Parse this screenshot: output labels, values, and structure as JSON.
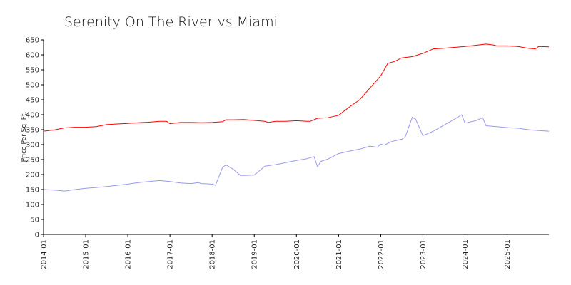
{
  "chart_data": {
    "type": "line",
    "title": "Serenity On The River vs Miami",
    "xlabel": "",
    "ylabel": "Price Per Sq. Ft.",
    "ylim": [
      0,
      650
    ],
    "xlim": [
      2014.0,
      2025.99
    ],
    "grid": false,
    "yticks": [
      0,
      50,
      100,
      150,
      200,
      250,
      300,
      350,
      400,
      450,
      500,
      550,
      600,
      650
    ],
    "xticks": [
      {
        "label": "2014-01",
        "value": 2014.0
      },
      {
        "label": "2015-01",
        "value": 2015.0
      },
      {
        "label": "2016-01",
        "value": 2016.0
      },
      {
        "label": "2017-01",
        "value": 2017.0
      },
      {
        "label": "2018-01",
        "value": 2018.0
      },
      {
        "label": "2019-01",
        "value": 2019.0
      },
      {
        "label": "2020-01",
        "value": 2020.0
      },
      {
        "label": "2021-01",
        "value": 2021.0
      },
      {
        "label": "2022-01",
        "value": 2022.0
      },
      {
        "label": "2023-01",
        "value": 2023.0
      },
      {
        "label": "2024-01",
        "value": 2024.0
      },
      {
        "label": "2025-01",
        "value": 2025.0
      }
    ],
    "series": [
      {
        "name": "Miami",
        "color": "#ff0000",
        "x": [
          2014.0,
          2014.25,
          2014.5,
          2014.75,
          2015.0,
          2015.25,
          2015.5,
          2015.75,
          2016.0,
          2016.25,
          2016.5,
          2016.75,
          2016.92,
          2017.0,
          2017.25,
          2017.5,
          2017.75,
          2018.0,
          2018.25,
          2018.33,
          2018.5,
          2018.75,
          2019.0,
          2019.25,
          2019.33,
          2019.5,
          2019.75,
          2020.0,
          2020.25,
          2020.33,
          2020.5,
          2020.75,
          2021.0,
          2021.25,
          2021.5,
          2021.75,
          2022.0,
          2022.17,
          2022.33,
          2022.5,
          2022.75,
          2023.0,
          2023.25,
          2023.5,
          2023.75,
          2024.0,
          2024.25,
          2024.5,
          2024.67,
          2024.75,
          2025.0,
          2025.25,
          2025.5,
          2025.67,
          2025.75,
          2025.99
        ],
        "values": [
          345,
          349,
          356,
          358,
          358,
          360,
          367,
          369,
          371,
          373,
          375,
          378,
          378,
          370,
          374,
          374,
          373,
          374,
          377,
          383,
          383,
          384,
          381,
          378,
          374,
          378,
          378,
          380,
          378,
          378,
          388,
          390,
          398,
          425,
          450,
          490,
          530,
          572,
          578,
          590,
          594,
          605,
          620,
          622,
          625,
          628,
          632,
          636,
          633,
          630,
          630,
          628,
          622,
          620,
          628,
          627
        ]
      },
      {
        "name": "Serenity On The River",
        "color": "#9999ee",
        "x": [
          2014.0,
          2014.25,
          2014.5,
          2014.75,
          2015.0,
          2015.25,
          2015.5,
          2015.75,
          2016.0,
          2016.25,
          2016.5,
          2016.75,
          2017.0,
          2017.25,
          2017.5,
          2017.67,
          2017.75,
          2018.0,
          2018.08,
          2018.25,
          2018.33,
          2018.5,
          2018.67,
          2018.75,
          2019.0,
          2019.17,
          2019.25,
          2019.5,
          2019.75,
          2020.0,
          2020.25,
          2020.42,
          2020.5,
          2020.58,
          2020.75,
          2021.0,
          2021.25,
          2021.5,
          2021.75,
          2021.92,
          2022.0,
          2022.08,
          2022.25,
          2022.5,
          2022.58,
          2022.75,
          2022.83,
          2023.0,
          2023.25,
          2023.5,
          2023.75,
          2023.92,
          2024.0,
          2024.25,
          2024.42,
          2024.5,
          2024.75,
          2025.0,
          2025.25,
          2025.5,
          2025.75,
          2025.99
        ],
        "values": [
          150,
          148,
          145,
          150,
          154,
          157,
          160,
          164,
          168,
          173,
          177,
          180,
          177,
          172,
          170,
          173,
          170,
          168,
          164,
          225,
          232,
          218,
          197,
          197,
          198,
          218,
          228,
          233,
          240,
          247,
          253,
          260,
          226,
          244,
          252,
          270,
          278,
          285,
          295,
          291,
          302,
          298,
          310,
          318,
          325,
          392,
          385,
          330,
          345,
          365,
          385,
          400,
          372,
          380,
          390,
          363,
          360,
          357,
          355,
          350,
          347,
          345
        ]
      }
    ]
  }
}
